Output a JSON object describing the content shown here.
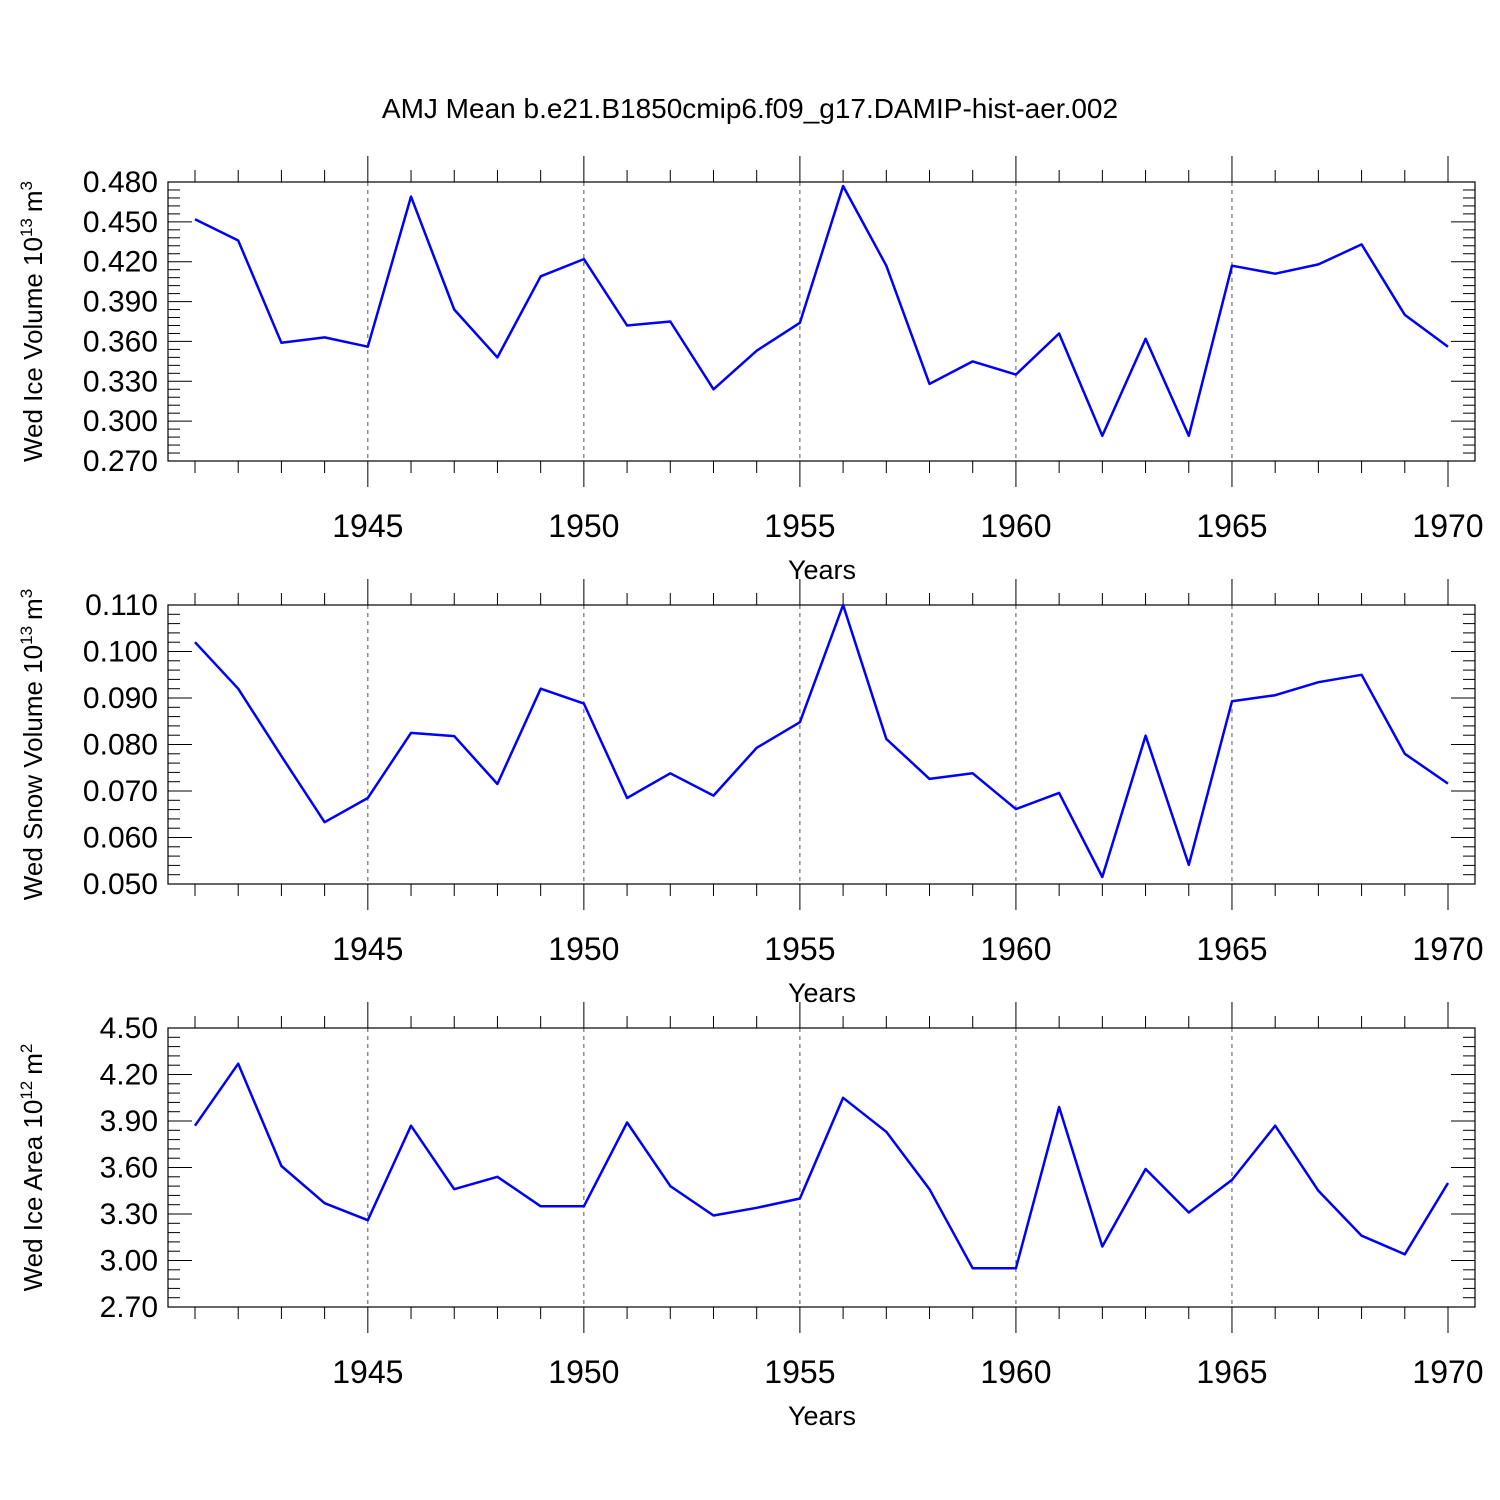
{
  "figure_title": "AMJ Mean b.e21.B1850cmip6.f09_g17.DAMIP-hist-aer.002",
  "colors": {
    "series": "#0000ff",
    "axes": "#000000",
    "grid": "#555555"
  },
  "chart_data": [
    {
      "type": "line",
      "ylabel_main": "Wed Ice Volume 10",
      "ylabel_exp": "13",
      "ylabel_unit": "m",
      "ylabel_unit_exp": "3",
      "xlabel": "Years",
      "xlim": [
        1941,
        1970
      ],
      "ylim": [
        0.27,
        0.48
      ],
      "yticks": [
        0.27,
        0.3,
        0.33,
        0.36,
        0.39,
        0.42,
        0.45,
        0.48
      ],
      "ytick_labels": [
        "0.270",
        "0.300",
        "0.330",
        "0.360",
        "0.390",
        "0.420",
        "0.450",
        "0.480"
      ],
      "xticks": [
        1945,
        1950,
        1955,
        1960,
        1965,
        1970
      ],
      "xtick_labels": [
        "1945",
        "1950",
        "1955",
        "1960",
        "1965",
        "1970"
      ],
      "x": [
        1941,
        1942,
        1943,
        1944,
        1945,
        1946,
        1947,
        1948,
        1949,
        1950,
        1951,
        1952,
        1953,
        1954,
        1955,
        1956,
        1957,
        1958,
        1959,
        1960,
        1961,
        1962,
        1963,
        1964,
        1965,
        1966,
        1967,
        1968,
        1969,
        1970
      ],
      "values": [
        0.452,
        0.436,
        0.359,
        0.363,
        0.356,
        0.469,
        0.384,
        0.348,
        0.409,
        0.422,
        0.372,
        0.375,
        0.324,
        0.353,
        0.374,
        0.477,
        0.417,
        0.328,
        0.345,
        0.335,
        0.366,
        0.289,
        0.362,
        0.289,
        0.417,
        0.411,
        0.418,
        0.433,
        0.38,
        0.356
      ]
    },
    {
      "type": "line",
      "ylabel_main": "Wed Snow Volume 10",
      "ylabel_exp": "13",
      "ylabel_unit": "m",
      "ylabel_unit_exp": "3",
      "xlabel": "Years",
      "xlim": [
        1941,
        1970
      ],
      "ylim": [
        0.05,
        0.11
      ],
      "yticks": [
        0.05,
        0.06,
        0.07,
        0.08,
        0.09,
        0.1,
        0.11
      ],
      "ytick_labels": [
        "0.050",
        "0.060",
        "0.070",
        "0.080",
        "0.090",
        "0.100",
        "0.110"
      ],
      "xticks": [
        1945,
        1950,
        1955,
        1960,
        1965,
        1970
      ],
      "xtick_labels": [
        "1945",
        "1950",
        "1955",
        "1960",
        "1965",
        "1970"
      ],
      "x": [
        1941,
        1942,
        1943,
        1944,
        1945,
        1946,
        1947,
        1948,
        1949,
        1950,
        1951,
        1952,
        1953,
        1954,
        1955,
        1956,
        1957,
        1958,
        1959,
        1960,
        1961,
        1962,
        1963,
        1964,
        1965,
        1966,
        1967,
        1968,
        1969,
        1970
      ],
      "values": [
        0.102,
        0.092,
        0.0775,
        0.0633,
        0.0685,
        0.0825,
        0.0818,
        0.0715,
        0.092,
        0.0888,
        0.0685,
        0.0738,
        0.069,
        0.0793,
        0.0848,
        0.11,
        0.0812,
        0.0726,
        0.0738,
        0.0661,
        0.0696,
        0.0515,
        0.0819,
        0.0541,
        0.0893,
        0.0906,
        0.0934,
        0.095,
        0.078,
        0.0716
      ]
    },
    {
      "type": "line",
      "ylabel_main": "Wed Ice Area 10",
      "ylabel_exp": "12",
      "ylabel_unit": "m",
      "ylabel_unit_exp": "2",
      "xlabel": "Years",
      "xlim": [
        1941,
        1970
      ],
      "ylim": [
        2.7,
        4.5
      ],
      "yticks": [
        2.7,
        3.0,
        3.3,
        3.6,
        3.9,
        4.2,
        4.5
      ],
      "ytick_labels": [
        "2.70",
        "3.00",
        "3.30",
        "3.60",
        "3.90",
        "4.20",
        "4.50"
      ],
      "xticks": [
        1945,
        1950,
        1955,
        1960,
        1965,
        1970
      ],
      "xtick_labels": [
        "1945",
        "1950",
        "1955",
        "1960",
        "1965",
        "1970"
      ],
      "x": [
        1941,
        1942,
        1943,
        1944,
        1945,
        1946,
        1947,
        1948,
        1949,
        1950,
        1951,
        1952,
        1953,
        1954,
        1955,
        1956,
        1957,
        1958,
        1959,
        1960,
        1961,
        1962,
        1963,
        1964,
        1965,
        1966,
        1967,
        1968,
        1969,
        1970
      ],
      "values": [
        3.87,
        4.27,
        3.61,
        3.37,
        3.26,
        3.87,
        3.46,
        3.54,
        3.35,
        3.35,
        3.89,
        3.48,
        3.29,
        3.34,
        3.4,
        4.05,
        3.83,
        3.46,
        2.95,
        2.95,
        3.99,
        3.09,
        3.59,
        3.31,
        3.52,
        3.87,
        3.45,
        3.16,
        3.04,
        3.5
      ]
    }
  ]
}
